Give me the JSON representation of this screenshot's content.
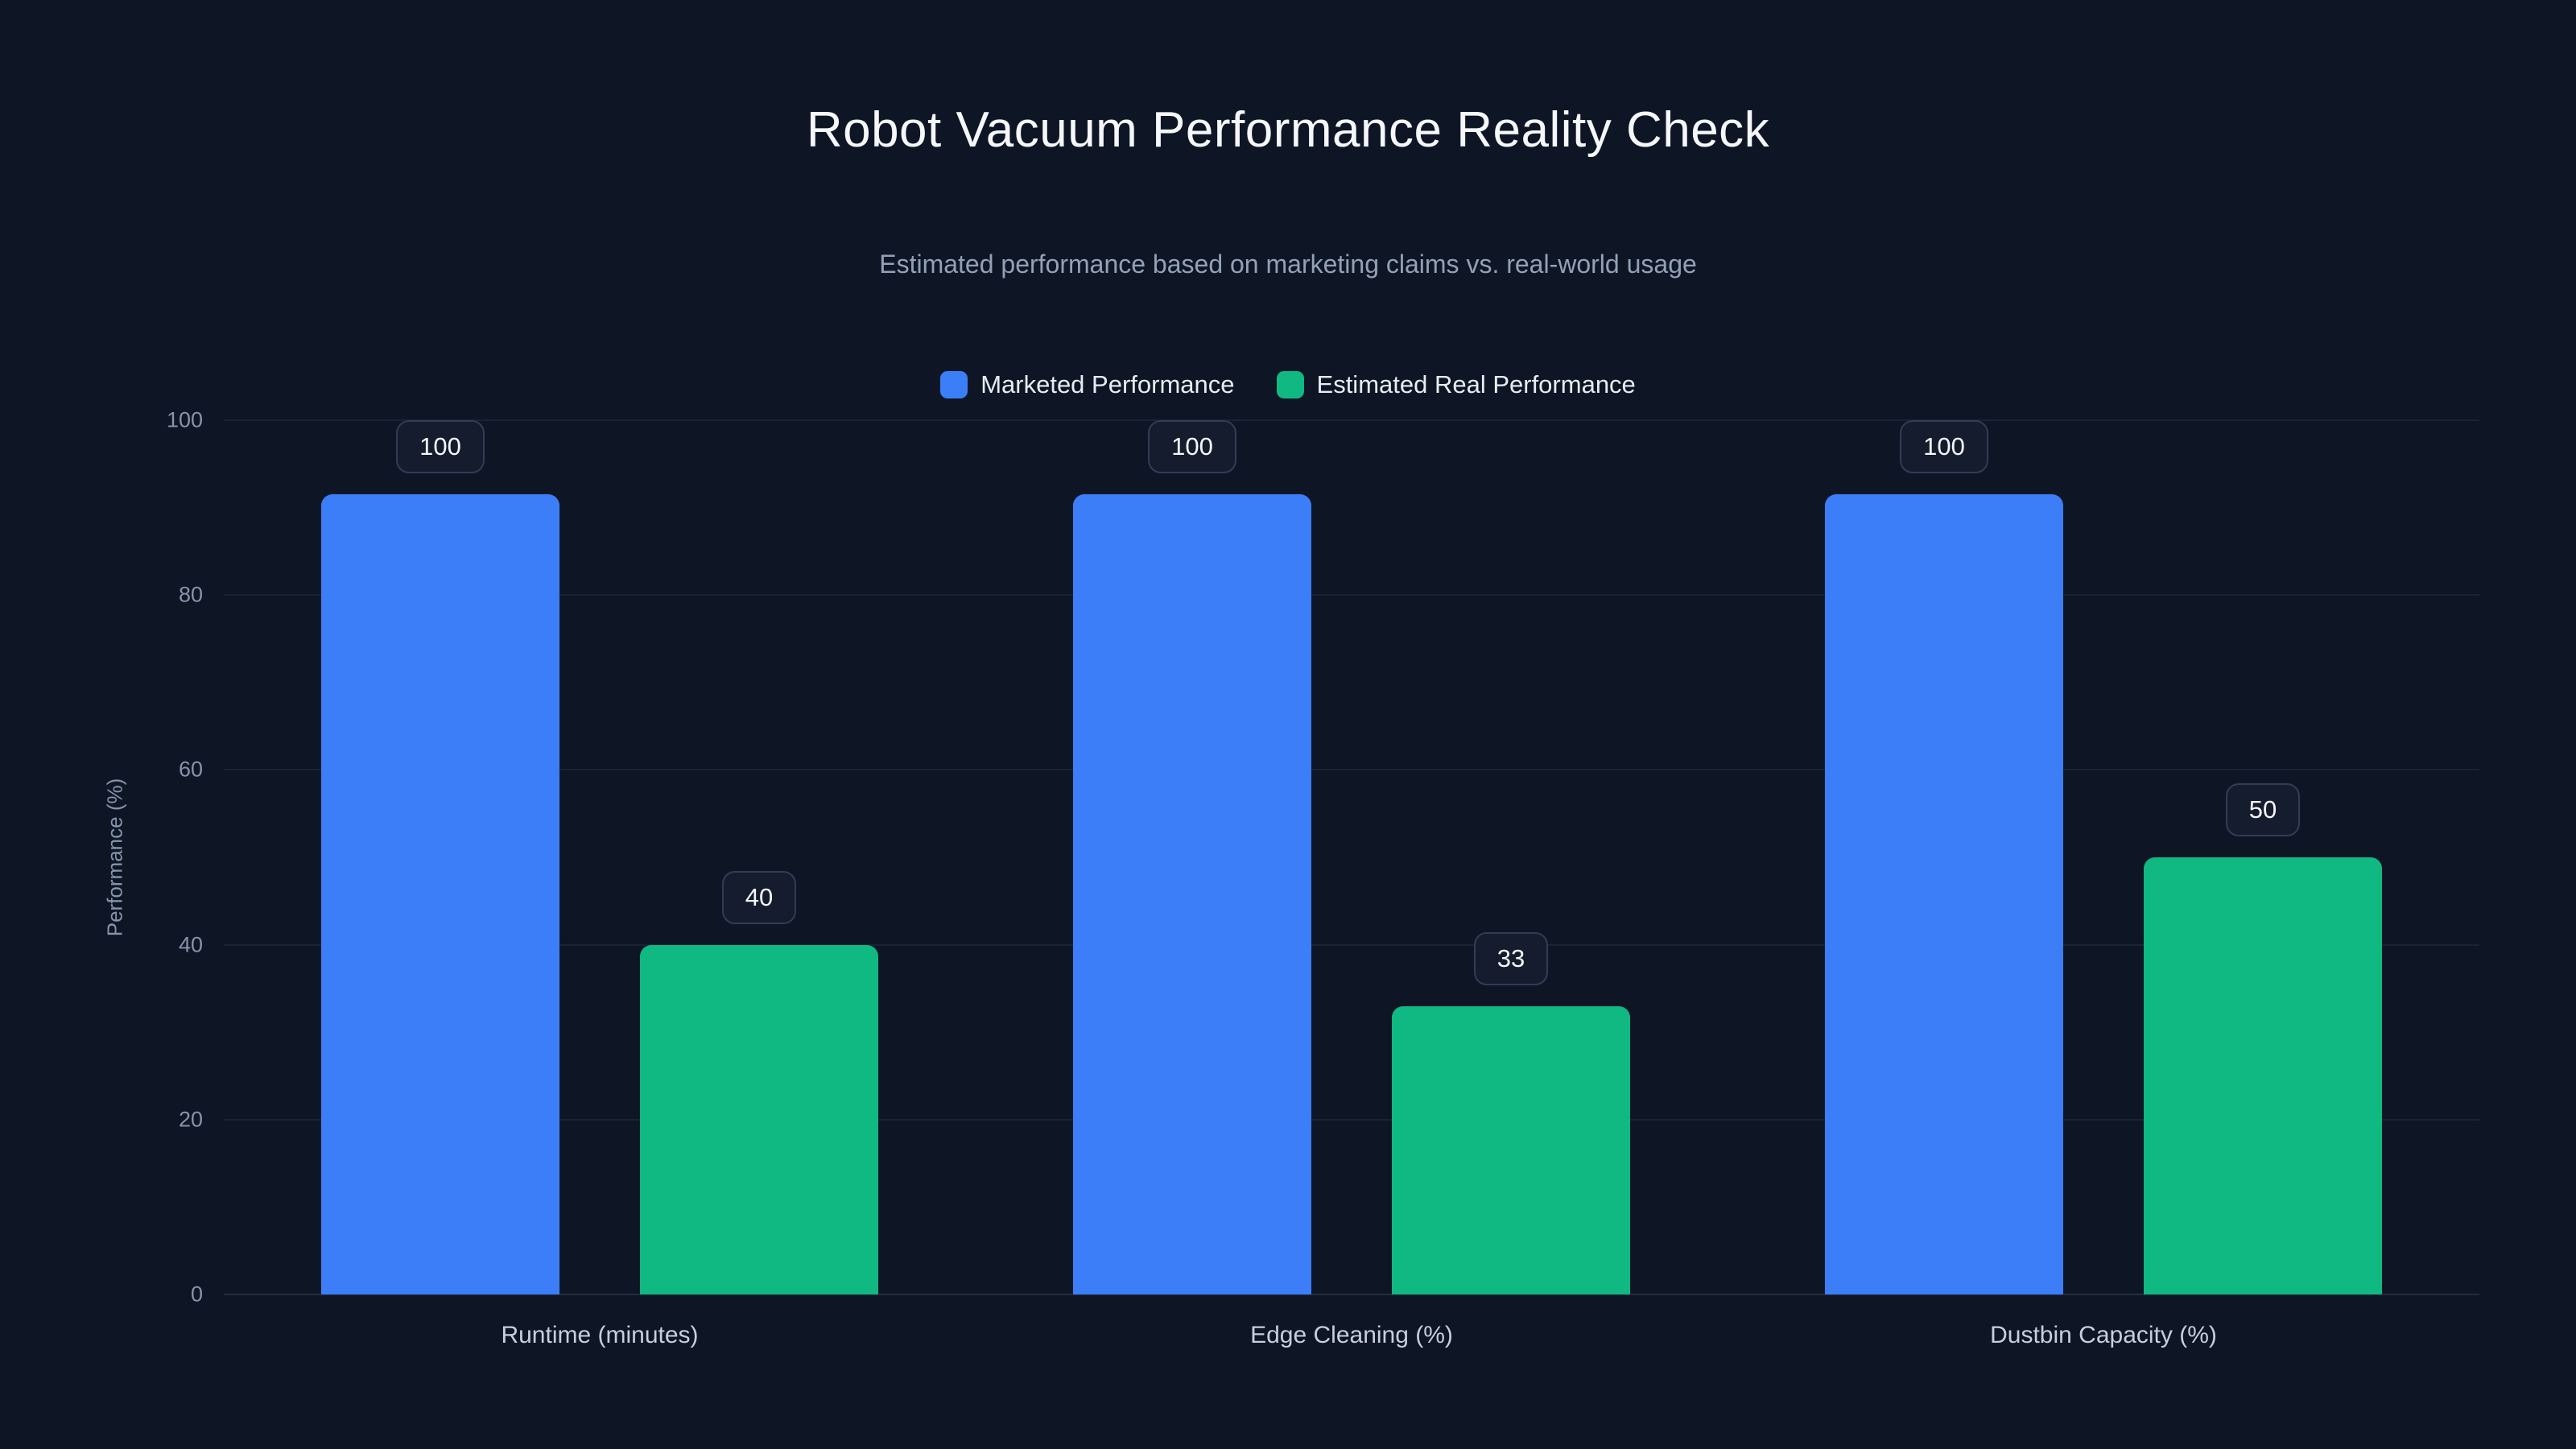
{
  "chart_data": {
    "type": "bar",
    "title": "Robot Vacuum Performance Reality Check",
    "subtitle": "Estimated performance based on marketing claims vs. real-world usage",
    "categories": [
      "Runtime (minutes)",
      "Edge Cleaning (%)",
      "Dustbin Capacity (%)"
    ],
    "series": [
      {
        "name": "Marketed Performance",
        "color": "#3b7ef8",
        "values": [
          100,
          100,
          100
        ]
      },
      {
        "name": "Estimated Real Performance",
        "color": "#10b981",
        "values": [
          40,
          33,
          50
        ]
      }
    ],
    "ylabel": "Performance (%)",
    "yticks": [
      0,
      20,
      40,
      60,
      80,
      100
    ],
    "ylim": [
      0,
      100
    ],
    "grid": true,
    "legend_position": "top-center",
    "value_labels": true,
    "background_color": "#0e1626"
  }
}
